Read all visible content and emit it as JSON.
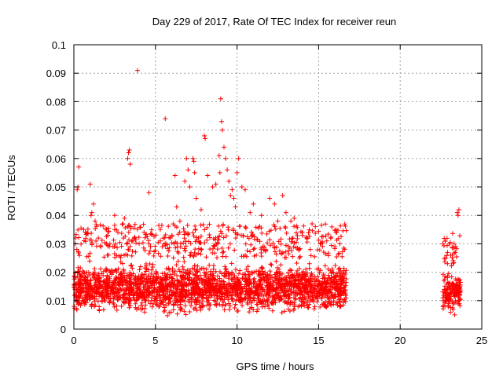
{
  "chart_data": {
    "type": "scatter",
    "title": "Day 229 of 2017, Rate Of TEC Index for receiver reun",
    "xlabel": "GPS time / hours",
    "ylabel": "ROTI / TECUs",
    "xlim": [
      0,
      25
    ],
    "ylim": [
      0,
      0.1
    ],
    "x_ticks": [
      0,
      5,
      10,
      15,
      20,
      25
    ],
    "x_tick_labels": [
      "0",
      "5",
      "10",
      "15",
      "20",
      "25"
    ],
    "y_ticks": [
      0,
      0.01,
      0.02,
      0.03,
      0.04,
      0.05,
      0.06,
      0.07,
      0.08,
      0.09,
      0.1
    ],
    "y_tick_labels": [
      "0",
      "0.01",
      "0.02",
      "0.03",
      "0.04",
      "0.05",
      "0.06",
      "0.07",
      "0.08",
      "0.09",
      "0.1"
    ],
    "grid": true,
    "marker": "+",
    "color": "#ff0000",
    "series": [
      {
        "dense_bands": [
          {
            "x_range": [
              0,
              16.7
            ],
            "y_range": [
              0.004,
              0.025
            ]
          },
          {
            "x_range": [
              22.6,
              23.7
            ],
            "y_range": [
              0.004,
              0.022
            ]
          }
        ],
        "points": [
          [
            0.1,
            0.03
          ],
          [
            0.2,
            0.049
          ],
          [
            0.25,
            0.05
          ],
          [
            0.3,
            0.057
          ],
          [
            0.6,
            0.035
          ],
          [
            0.7,
            0.034
          ],
          [
            1.0,
            0.051
          ],
          [
            1.05,
            0.04
          ],
          [
            1.1,
            0.041
          ],
          [
            1.2,
            0.044
          ],
          [
            1.3,
            0.038
          ],
          [
            1.5,
            0.032
          ],
          [
            2.0,
            0.03
          ],
          [
            2.5,
            0.04
          ],
          [
            2.7,
            0.034
          ],
          [
            3.0,
            0.037
          ],
          [
            3.1,
            0.039
          ],
          [
            3.3,
            0.06
          ],
          [
            3.35,
            0.062
          ],
          [
            3.4,
            0.063
          ],
          [
            3.45,
            0.058
          ],
          [
            3.5,
            0.036
          ],
          [
            3.9,
            0.091
          ],
          [
            4.0,
            0.03
          ],
          [
            4.3,
            0.034
          ],
          [
            4.6,
            0.048
          ],
          [
            4.7,
            0.029
          ],
          [
            5.3,
            0.031
          ],
          [
            5.6,
            0.074
          ],
          [
            5.9,
            0.032
          ],
          [
            6.2,
            0.054
          ],
          [
            6.3,
            0.043
          ],
          [
            6.5,
            0.038
          ],
          [
            6.8,
            0.052
          ],
          [
            6.9,
            0.06
          ],
          [
            7.0,
            0.056
          ],
          [
            7.1,
            0.05
          ],
          [
            7.3,
            0.06
          ],
          [
            7.35,
            0.059
          ],
          [
            7.4,
            0.055
          ],
          [
            7.5,
            0.046
          ],
          [
            7.8,
            0.042
          ],
          [
            8.0,
            0.068
          ],
          [
            8.05,
            0.067
          ],
          [
            8.2,
            0.054
          ],
          [
            8.5,
            0.05
          ],
          [
            8.7,
            0.051
          ],
          [
            8.9,
            0.061
          ],
          [
            8.95,
            0.055
          ],
          [
            9.0,
            0.081
          ],
          [
            9.05,
            0.073
          ],
          [
            9.1,
            0.07
          ],
          [
            9.2,
            0.064
          ],
          [
            9.3,
            0.06
          ],
          [
            9.4,
            0.056
          ],
          [
            9.5,
            0.052
          ],
          [
            9.6,
            0.047
          ],
          [
            9.7,
            0.049
          ],
          [
            9.8,
            0.046
          ],
          [
            9.9,
            0.043
          ],
          [
            10.0,
            0.055
          ],
          [
            10.1,
            0.06
          ],
          [
            10.3,
            0.05
          ],
          [
            10.5,
            0.049
          ],
          [
            10.8,
            0.041
          ],
          [
            11.0,
            0.044
          ],
          [
            11.5,
            0.04
          ],
          [
            12.0,
            0.046
          ],
          [
            12.3,
            0.044
          ],
          [
            12.5,
            0.038
          ],
          [
            12.8,
            0.047
          ],
          [
            13.0,
            0.041
          ],
          [
            13.3,
            0.038
          ],
          [
            13.5,
            0.039
          ],
          [
            14.0,
            0.034
          ],
          [
            14.3,
            0.032
          ],
          [
            14.6,
            0.037
          ],
          [
            14.8,
            0.036
          ],
          [
            15.1,
            0.03
          ],
          [
            15.5,
            0.031
          ],
          [
            16.0,
            0.029
          ],
          [
            16.3,
            0.03
          ],
          [
            16.6,
            0.028
          ],
          [
            22.8,
            0.025
          ],
          [
            22.9,
            0.023
          ],
          [
            23.2,
            0.026
          ],
          [
            23.3,
            0.03
          ],
          [
            23.4,
            0.029
          ],
          [
            23.5,
            0.041
          ],
          [
            23.55,
            0.04
          ],
          [
            23.6,
            0.042
          ]
        ]
      }
    ]
  }
}
